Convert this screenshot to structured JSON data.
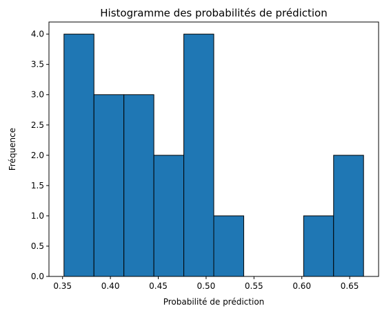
{
  "chart_data": {
    "type": "bar",
    "title": "Histogramme des probabilités de prédiction",
    "xlabel": "Probabilité de prédiction",
    "ylabel": "Fréquence",
    "bin_edges": [
      0.3515,
      0.3828,
      0.4141,
      0.4454,
      0.4767,
      0.508,
      0.5393,
      0.5706,
      0.6019,
      0.6332,
      0.6645
    ],
    "counts": [
      4,
      3,
      3,
      2,
      4,
      1,
      0,
      0,
      1,
      2
    ],
    "xlim": [
      0.3358,
      0.6802
    ],
    "ylim": [
      0,
      4.2
    ],
    "xticks": [
      0.35,
      0.4,
      0.45,
      0.5,
      0.55,
      0.6,
      0.65
    ],
    "xtick_labels": [
      "0.35",
      "0.40",
      "0.45",
      "0.50",
      "0.55",
      "0.60",
      "0.65"
    ],
    "yticks": [
      0,
      0.5,
      1,
      1.5,
      2,
      2.5,
      3,
      3.5,
      4
    ],
    "ytick_labels": [
      "0.0",
      "0.5",
      "1.0",
      "1.5",
      "2.0",
      "2.5",
      "3.0",
      "3.5",
      "4.0"
    ],
    "grid": false,
    "colors": {
      "bar_fill": "#1f77b4",
      "bar_edge": "#000000"
    }
  }
}
